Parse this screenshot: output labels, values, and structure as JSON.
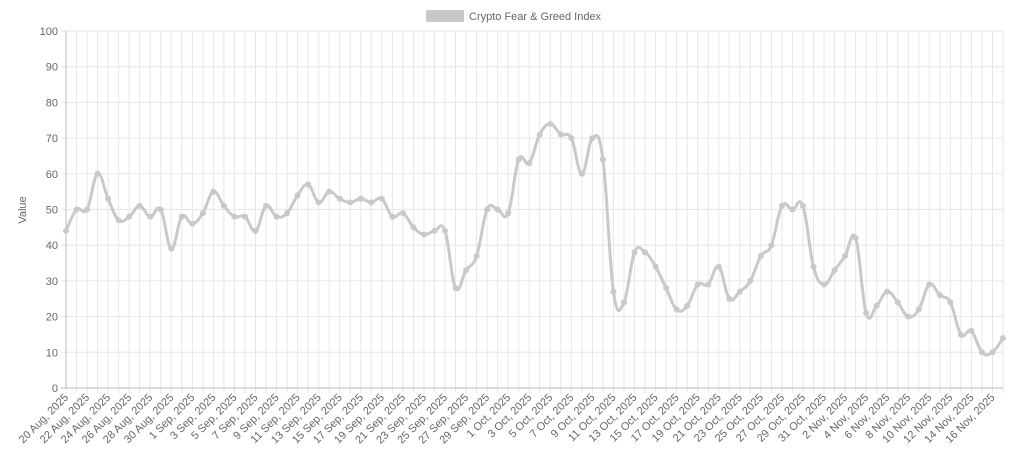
{
  "chart_data": {
    "type": "line",
    "y_label": "Value",
    "categories": [
      "20 Aug, 2025",
      null,
      "22 Aug, 2025",
      null,
      "24 Aug, 2025",
      null,
      "26 Aug, 2025",
      null,
      "28 Aug, 2025",
      null,
      "30 Aug, 2025",
      null,
      "1 Sep, 2025",
      null,
      "3 Sep, 2025",
      null,
      "5 Sep, 2025",
      null,
      "7 Sep, 2025",
      null,
      "9 Sep, 2025",
      null,
      "11 Sep, 2025",
      null,
      "13 Sep, 2025",
      null,
      "15 Sep, 2025",
      null,
      "17 Sep, 2025",
      null,
      "19 Sep, 2025",
      null,
      "21 Sep, 2025",
      null,
      "23 Sep, 2025",
      null,
      "25 Sep, 2025",
      null,
      "27 Sep, 2025",
      null,
      "29 Sep, 2025",
      null,
      "1 Oct, 2025",
      null,
      "3 Oct, 2025",
      null,
      "5 Oct, 2025",
      null,
      "7 Oct, 2025",
      null,
      "9 Oct, 2025",
      null,
      "11 Oct, 2025",
      null,
      "13 Oct, 2025",
      null,
      "15 Oct, 2025",
      null,
      "17 Oct, 2025",
      null,
      "19 Oct, 2025",
      null,
      "21 Oct, 2025",
      null,
      "23 Oct, 2025",
      null,
      "25 Oct, 2025",
      null,
      "27 Oct, 2025",
      null,
      "29 Oct, 2025",
      null,
      "31 Oct, 2025",
      null,
      "2 Nov, 2025",
      null,
      "4 Nov, 2025",
      null,
      "6 Nov, 2025",
      null,
      "8 Nov, 2025",
      null,
      "10 Nov, 2025",
      null,
      "12 Nov, 2025",
      null,
      "14 Nov, 2025",
      null,
      "16 Nov, 2025",
      null
    ],
    "series": [
      {
        "name": "Crypto Fear & Greed Index",
        "color": "#c9c9c9",
        "values": [
          44,
          50,
          50,
          60,
          53,
          47,
          48,
          51,
          48,
          50,
          39,
          48,
          46,
          49,
          55,
          51,
          48,
          48,
          44,
          51,
          48,
          49,
          54,
          57,
          52,
          55,
          53,
          52,
          53,
          52,
          53,
          48,
          49,
          45,
          43,
          44,
          44,
          28,
          33,
          37,
          50,
          50,
          49,
          64,
          63,
          71,
          74,
          71,
          70,
          60,
          70,
          64,
          27,
          24,
          38,
          38,
          34,
          28,
          22,
          23,
          29,
          29,
          34,
          25,
          27,
          30,
          37,
          40,
          51,
          50,
          51,
          34,
          29,
          33,
          37,
          42,
          21,
          23,
          27,
          24,
          20,
          22,
          29,
          26,
          24,
          15,
          16,
          10,
          10,
          14
        ]
      }
    ],
    "ylim": [
      0,
      100
    ],
    "yticks": [
      0,
      10,
      20,
      30,
      40,
      50,
      60,
      70,
      80,
      90,
      100
    ],
    "grid": true
  }
}
